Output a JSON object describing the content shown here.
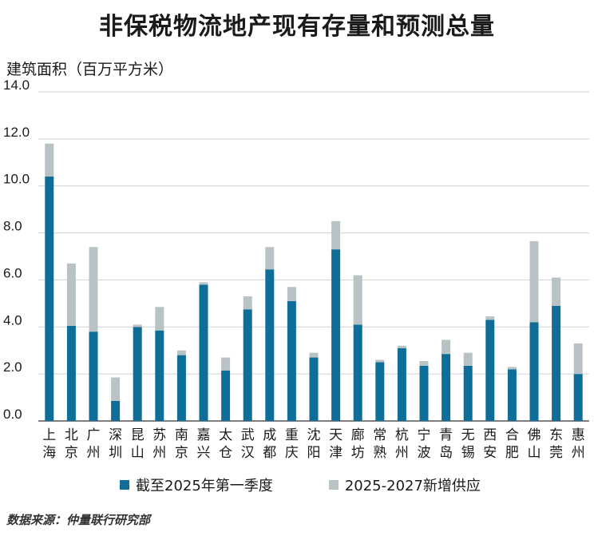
{
  "chart_data": {
    "type": "bar",
    "stacked": true,
    "title": "非保税物流地产现有存量和预测总量",
    "ylabel": "建筑面积（百万平方米）",
    "ylim": [
      0,
      14
    ],
    "yticks": [
      "0.0",
      "2.0",
      "4.0",
      "6.0",
      "8.0",
      "10.0",
      "12.0",
      "14.0"
    ],
    "grid": true,
    "legend_position": "bottom",
    "categories": [
      "上海",
      "北京",
      "广州",
      "深圳",
      "昆山",
      "苏州",
      "南京",
      "嘉兴",
      "太仓",
      "武汉",
      "成都",
      "重庆",
      "沈阳",
      "天津",
      "廊坊",
      "常熟",
      "杭州",
      "宁波",
      "青岛",
      "无锡",
      "西安",
      "合肥",
      "佛山",
      "东莞",
      "惠州"
    ],
    "series": [
      {
        "name": "截至2025年第一季度",
        "color": "#0e6e98",
        "values": [
          10.4,
          4.05,
          3.8,
          0.85,
          4.0,
          3.85,
          2.8,
          5.8,
          2.15,
          4.75,
          6.45,
          5.1,
          2.7,
          7.3,
          4.1,
          2.5,
          3.1,
          2.35,
          2.85,
          2.35,
          4.3,
          2.2,
          4.2,
          4.9,
          2.0
        ]
      },
      {
        "name": "2025-2027新增供应",
        "color": "#b9c3c6",
        "values": [
          1.4,
          2.65,
          3.6,
          1.0,
          0.1,
          1.0,
          0.2,
          0.1,
          0.55,
          0.55,
          0.95,
          0.6,
          0.2,
          1.2,
          2.1,
          0.1,
          0.1,
          0.2,
          0.6,
          0.55,
          0.15,
          0.1,
          3.45,
          1.2,
          1.3
        ]
      }
    ],
    "source": "数据来源：仲量联行研究部"
  }
}
